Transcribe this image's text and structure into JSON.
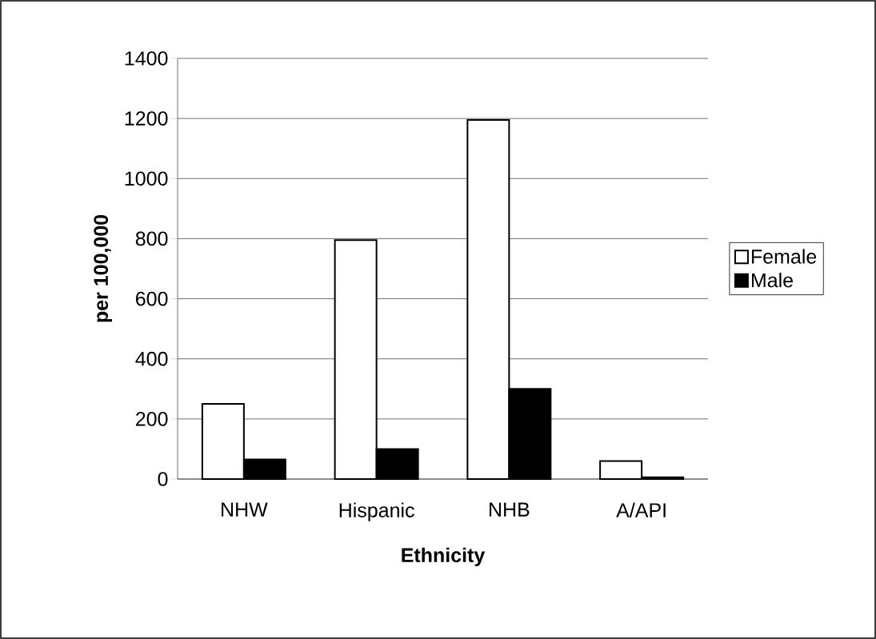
{
  "chart_data": {
    "type": "bar",
    "xlabel": "Ethnicity",
    "ylabel": "per 100,000",
    "categories": [
      "NHW",
      "Hispanic",
      "NHB",
      "A/API"
    ],
    "series": [
      {
        "name": "Female",
        "color": "#ffffff",
        "values": [
          250,
          795,
          1195,
          60
        ]
      },
      {
        "name": "Male",
        "color": "#000000",
        "values": [
          65,
          100,
          300,
          6
        ]
      }
    ],
    "ylim": [
      0,
      1400
    ],
    "yticks": [
      0,
      200,
      400,
      600,
      800,
      1000,
      1200,
      1400
    ],
    "grid": "y",
    "legend": "right"
  }
}
